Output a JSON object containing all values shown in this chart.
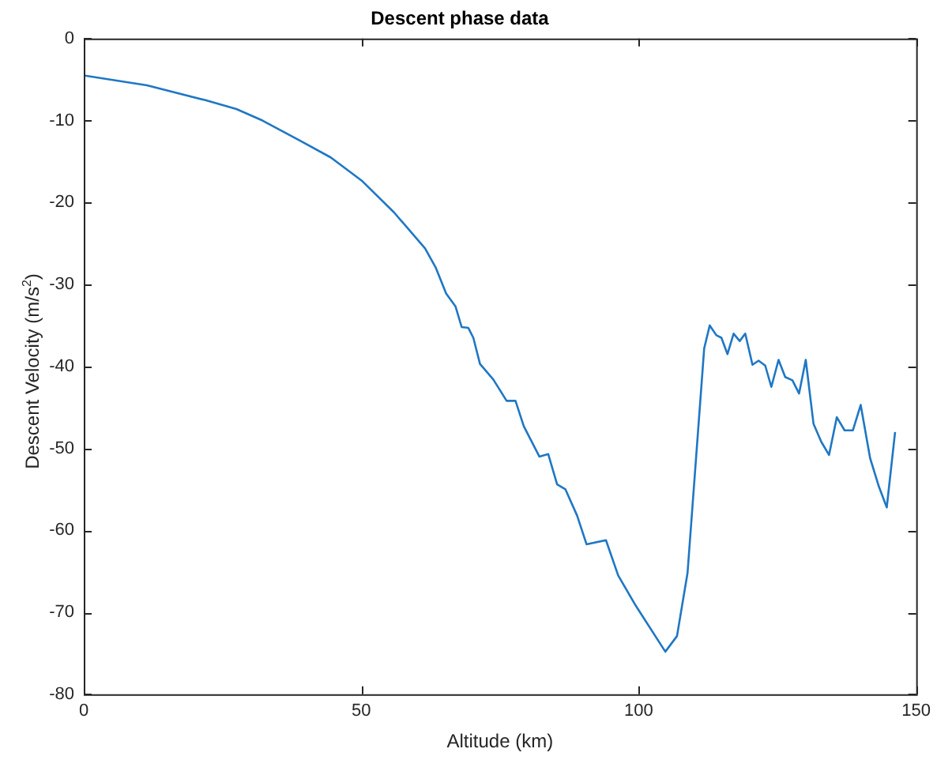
{
  "chart_data": {
    "type": "line",
    "title": "Descent phase data",
    "xlabel": "Altitude (km)",
    "ylabel": "Descent Velocity (m/s$^{2}$)",
    "xlim": [
      0,
      150
    ],
    "xticks": [
      0,
      50,
      100,
      150
    ],
    "ylim": [
      -80,
      0
    ],
    "yticks": [
      -80,
      -70,
      -60,
      -50,
      -40,
      -30,
      -20,
      -10,
      0
    ],
    "grid": false,
    "legend": false,
    "marker": "none",
    "line_style": "solid",
    "series": [
      {
        "color": "#1f77c4",
        "x": [
          0,
          11.4,
          21.8,
          27.5,
          32.2,
          38.8,
          44.5,
          50.2,
          55.9,
          61.5,
          63.4,
          65.3,
          67.0,
          68.1,
          69.3,
          70.2,
          71.4,
          73.8,
          76.2,
          77.8,
          79.3,
          82.1,
          83.7,
          85.3,
          86.8,
          88.9,
          90.6,
          94.1,
          96.3,
          99.3,
          104.8,
          106.9,
          108.8,
          111.8,
          112.8,
          114.0,
          114.9,
          116.0,
          117.1,
          118.2,
          119.2,
          120.5,
          121.6,
          122.8,
          123.9,
          125.2,
          126.4,
          127.7,
          128.9,
          130.1,
          131.5,
          132.9,
          134.3,
          135.7,
          137.1,
          138.6,
          140.0,
          141.7,
          143.3,
          144.7,
          146.2
        ],
        "values": [
          -4.5,
          -5.7,
          -7.5,
          -8.6,
          -10.0,
          -12.4,
          -14.5,
          -17.4,
          -21.2,
          -25.6,
          -27.9,
          -31.1,
          -32.7,
          -35.2,
          -35.3,
          -36.5,
          -39.7,
          -41.6,
          -44.2,
          -44.2,
          -47.3,
          -51.0,
          -50.7,
          -54.4,
          -55.0,
          -58.2,
          -61.7,
          -61.2,
          -65.5,
          -69.0,
          -74.8,
          -72.9,
          -65.2,
          -37.8,
          -35.0,
          -36.2,
          -36.5,
          -38.5,
          -36.0,
          -36.9,
          -36.0,
          -39.8,
          -39.3,
          -39.9,
          -42.5,
          -39.2,
          -41.3,
          -41.7,
          -43.3,
          -39.2,
          -47.0,
          -49.2,
          -50.8,
          -46.2,
          -47.8,
          -47.8,
          -44.7,
          -51.2,
          -54.7,
          -57.2,
          -48.0
        ]
      }
    ]
  }
}
